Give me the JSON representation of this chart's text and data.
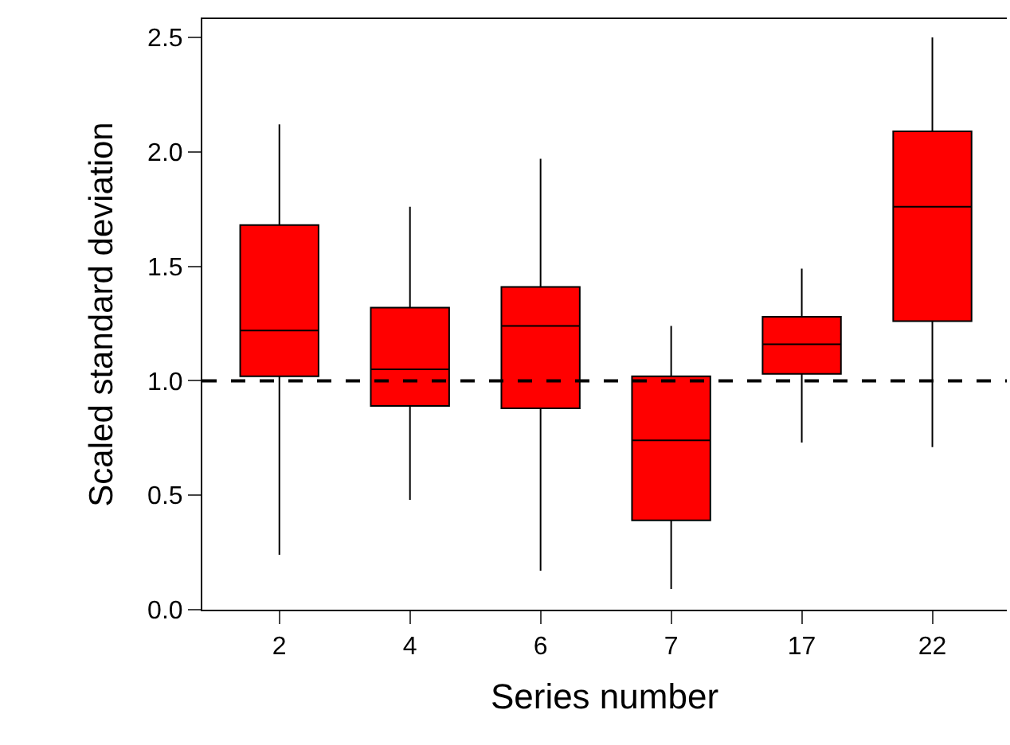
{
  "chart_data": {
    "type": "box",
    "xlabel": "Series number",
    "ylabel": "Scaled standard deviation",
    "categories": [
      "2",
      "4",
      "6",
      "7",
      "17",
      "22"
    ],
    "series": [
      {
        "color": "#ff0000",
        "boxes": [
          {
            "low": 0.24,
            "q1": 1.02,
            "median": 1.22,
            "q3": 1.68,
            "high": 2.12
          },
          {
            "low": 0.48,
            "q1": 0.89,
            "median": 1.05,
            "q3": 1.32,
            "high": 1.76
          },
          {
            "low": 0.17,
            "q1": 0.88,
            "median": 1.24,
            "q3": 1.41,
            "high": 1.97
          },
          {
            "low": 0.09,
            "q1": 0.39,
            "median": 0.74,
            "q3": 1.02,
            "high": 1.24
          },
          {
            "low": 0.73,
            "q1": 1.03,
            "median": 1.16,
            "q3": 1.28,
            "high": 1.49
          },
          {
            "low": 0.71,
            "q1": 1.26,
            "median": 1.76,
            "q3": 2.09,
            "high": 2.5
          }
        ]
      }
    ],
    "ylim": [
      0,
      2.58
    ],
    "yticks": [
      {
        "value": 0,
        "label": "0.0"
      },
      0.5,
      {
        "value": 1,
        "label": "1.0"
      },
      1.5,
      {
        "value": 2,
        "label": "2.0"
      },
      2.5
    ],
    "ref_lines": [
      {
        "axis": "y",
        "value": 1,
        "color": "#000000",
        "line_style": "dashed"
      }
    ]
  }
}
